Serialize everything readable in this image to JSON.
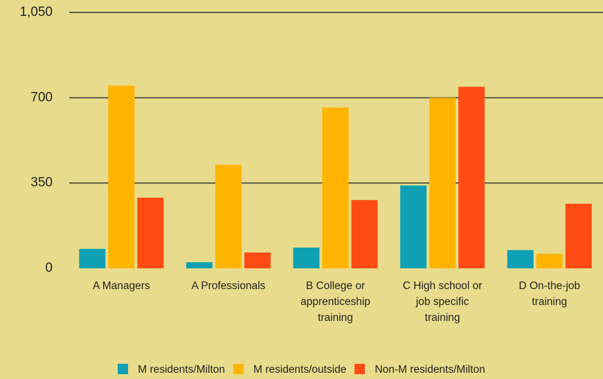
{
  "chart_data": {
    "type": "bar",
    "categories": [
      "A Managers",
      "A Professionals",
      "B College or apprenticeship training",
      "C High school or job specific training",
      "D On-the-job training"
    ],
    "series": [
      {
        "name": "M residents/Milton",
        "color": "#0fa0b4",
        "values": [
          80,
          25,
          85,
          340,
          75
        ]
      },
      {
        "name": "M residents/outside",
        "color": "#ffb400",
        "values": [
          750,
          425,
          660,
          700,
          60
        ]
      },
      {
        "name": "Non-M residents/Milton",
        "color": "#ff4b14",
        "values": [
          290,
          65,
          280,
          745,
          265
        ]
      }
    ],
    "ylim": [
      0,
      1050
    ],
    "yticks": [
      0,
      350,
      700,
      {
        "value": 1050,
        "label": "1,050"
      }
    ],
    "grid": true
  }
}
